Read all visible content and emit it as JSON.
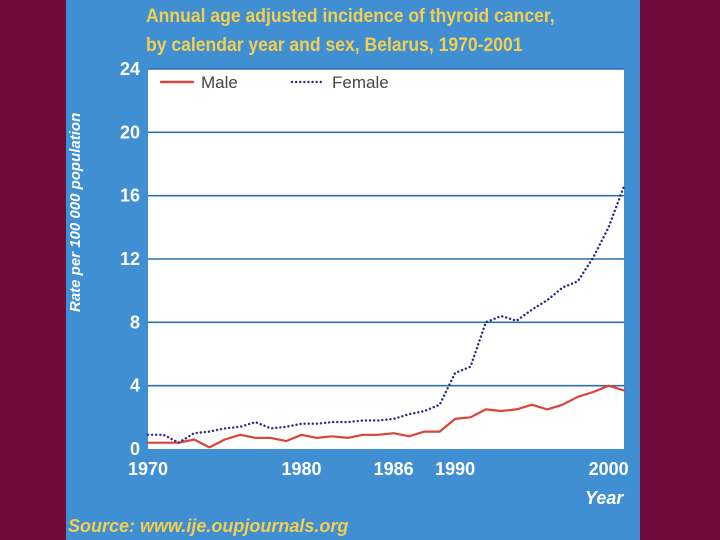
{
  "chart_data": {
    "type": "line",
    "title": "Annual age adjusted incidence of thyroid cancer,\nby calendar year and sex, Belarus, 1970-2001",
    "xlabel": "Year",
    "ylabel": "Rate per 100 000 population",
    "source": "Source: www.ije.oupjournals.org",
    "xlim": [
      1970,
      2001
    ],
    "ylim": [
      0,
      24
    ],
    "x_ticks": [
      "1970",
      "1980",
      "1986",
      "1990",
      "2000"
    ],
    "y_ticks": [
      "0",
      "4",
      "8",
      "12",
      "16",
      "20",
      "24"
    ],
    "grid": true,
    "legend": "top-left",
    "x": [
      1970,
      1971,
      1972,
      1973,
      1974,
      1975,
      1976,
      1977,
      1978,
      1979,
      1980,
      1981,
      1982,
      1983,
      1984,
      1985,
      1986,
      1987,
      1988,
      1989,
      1990,
      1991,
      1992,
      1993,
      1994,
      1995,
      1996,
      1997,
      1998,
      1999,
      2000,
      2001
    ],
    "series": [
      {
        "name": "Male",
        "color": "#d9453a",
        "style": "solid",
        "values": [
          0.4,
          0.4,
          0.4,
          0.6,
          0.1,
          0.6,
          0.9,
          0.7,
          0.7,
          0.5,
          0.9,
          0.7,
          0.8,
          0.7,
          0.9,
          0.9,
          1.0,
          0.8,
          1.1,
          1.1,
          1.9,
          2.0,
          2.5,
          2.4,
          2.5,
          2.8,
          2.5,
          2.8,
          3.3,
          3.6,
          4.0,
          3.7
        ]
      },
      {
        "name": "Female",
        "color": "#2a2f7a",
        "style": "dotted",
        "values": [
          0.9,
          0.9,
          0.4,
          1.0,
          1.1,
          1.3,
          1.4,
          1.7,
          1.3,
          1.4,
          1.6,
          1.6,
          1.7,
          1.7,
          1.8,
          1.8,
          1.9,
          2.2,
          2.4,
          2.8,
          4.8,
          5.2,
          8.0,
          8.4,
          8.1,
          8.8,
          9.4,
          10.2,
          10.6,
          12.1,
          14.0,
          16.6
        ]
      }
    ]
  }
}
